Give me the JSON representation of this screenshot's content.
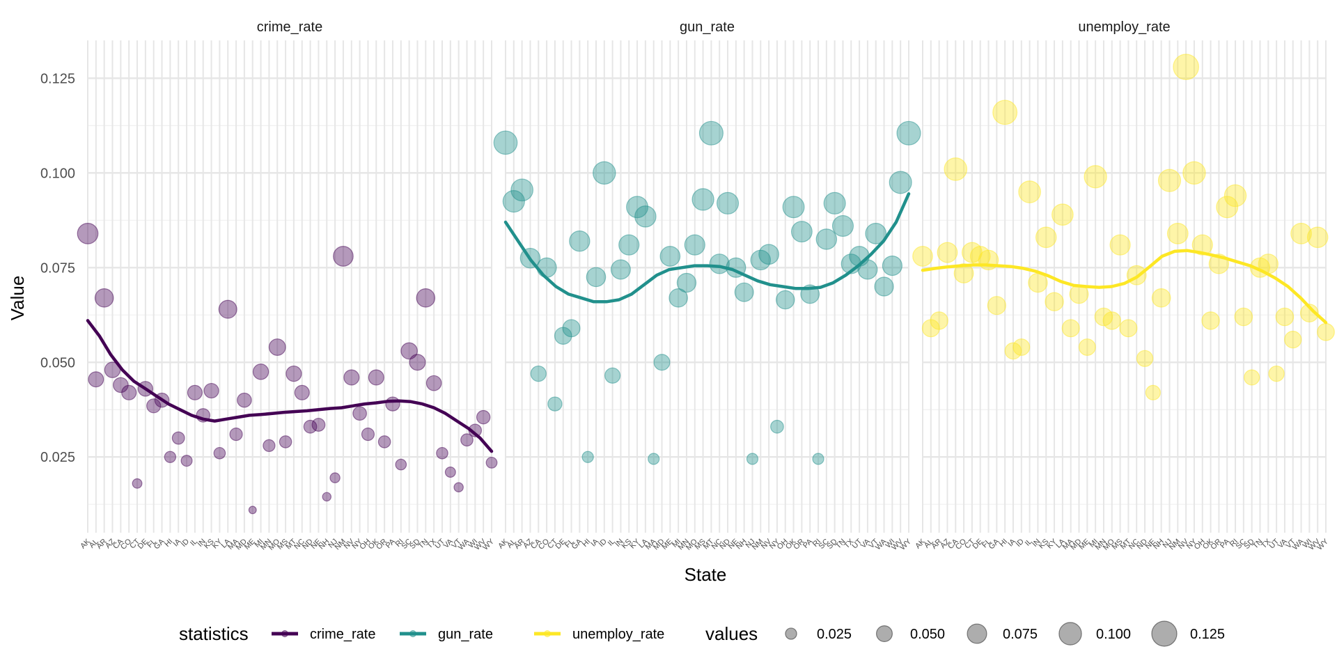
{
  "chart_data": {
    "type": "scatter",
    "facets": [
      "crime_rate",
      "gun_rate",
      "unemploy_rate"
    ],
    "xlabel": "State",
    "ylabel": "Value",
    "ylim": [
      0.005,
      0.135
    ],
    "y_ticks": [
      "0.025",
      "0.050",
      "0.075",
      "0.100",
      "0.125"
    ],
    "grid": true,
    "legend_position": "bottom",
    "states": [
      "AK",
      "AL",
      "AR",
      "AZ",
      "CA",
      "CO",
      "CT",
      "DE",
      "FL",
      "GA",
      "HI",
      "IA",
      "ID",
      "IL",
      "IN",
      "KS",
      "KY",
      "LA",
      "MA",
      "MD",
      "ME",
      "MI",
      "MN",
      "MO",
      "MS",
      "MT",
      "NC",
      "ND",
      "NE",
      "NH",
      "NJ",
      "NM",
      "NV",
      "NY",
      "OH",
      "OK",
      "OR",
      "PA",
      "RI",
      "SC",
      "SD",
      "TN",
      "TX",
      "UT",
      "VA",
      "VT",
      "WA",
      "WI",
      "WV",
      "WY"
    ],
    "series": [
      {
        "name": "crime_rate",
        "color": "#440154",
        "values": [
          0.084,
          0.0455,
          0.067,
          0.048,
          0.044,
          0.042,
          0.018,
          0.043,
          0.0385,
          0.04,
          0.025,
          0.03,
          0.024,
          0.042,
          0.036,
          0.0425,
          0.026,
          0.064,
          0.031,
          0.04,
          0.011,
          0.0475,
          0.028,
          0.054,
          0.029,
          0.047,
          0.042,
          0.033,
          0.0335,
          0.0145,
          0.0195,
          0.078,
          0.046,
          0.0365,
          0.031,
          0.046,
          0.029,
          0.039,
          0.023,
          0.053,
          0.05,
          0.067,
          0.0445,
          0.026,
          0.021,
          0.017,
          0.0295,
          0.032,
          0.0355,
          0.0235
        ],
        "trend": [
          0.061,
          0.057,
          0.052,
          0.048,
          0.045,
          0.043,
          0.041,
          0.039,
          0.0375,
          0.036,
          0.035,
          0.0345,
          0.035,
          0.0355,
          0.036,
          0.0362,
          0.0365,
          0.0368,
          0.037,
          0.0372,
          0.0375,
          0.0378,
          0.038,
          0.0385,
          0.039,
          0.0393,
          0.0397,
          0.0398,
          0.0396,
          0.039,
          0.038,
          0.0365,
          0.0345,
          0.0325,
          0.03,
          0.0265
        ]
      },
      {
        "name": "gun_rate",
        "color": "#21908c",
        "values": [
          0.108,
          0.0925,
          0.0955,
          0.0775,
          0.047,
          0.075,
          0.039,
          0.057,
          0.059,
          0.082,
          0.025,
          0.0725,
          0.1,
          0.0465,
          0.0745,
          0.081,
          0.091,
          0.0885,
          0.0245,
          0.05,
          0.078,
          0.067,
          0.071,
          0.081,
          0.093,
          0.1105,
          0.076,
          0.092,
          0.075,
          0.0685,
          0.0245,
          0.077,
          0.0785,
          0.033,
          0.0665,
          0.091,
          0.0845,
          0.068,
          0.0245,
          0.0825,
          0.092,
          0.086,
          0.076,
          0.078,
          0.0745,
          0.084,
          0.07,
          0.0755,
          0.0975,
          0.1105
        ],
        "trend": [
          0.087,
          0.082,
          0.077,
          0.073,
          0.07,
          0.068,
          0.067,
          0.066,
          0.066,
          0.0665,
          0.068,
          0.0705,
          0.073,
          0.0745,
          0.075,
          0.0755,
          0.0755,
          0.0753,
          0.0745,
          0.073,
          0.0715,
          0.0705,
          0.07,
          0.0695,
          0.0695,
          0.0698,
          0.071,
          0.073,
          0.0755,
          0.0785,
          0.082,
          0.087,
          0.0945
        ]
      },
      {
        "name": "unemploy_rate",
        "color": "#fde725",
        "values": [
          0.078,
          0.059,
          0.061,
          0.079,
          0.101,
          0.0735,
          0.079,
          0.078,
          0.077,
          0.065,
          0.116,
          0.053,
          0.054,
          0.095,
          0.071,
          0.083,
          0.066,
          0.089,
          0.059,
          0.068,
          0.054,
          0.099,
          0.062,
          0.061,
          0.081,
          0.059,
          0.073,
          0.051,
          0.042,
          0.067,
          0.098,
          0.084,
          0.128,
          0.1,
          0.081,
          0.061,
          0.076,
          0.091,
          0.094,
          0.062,
          0.046,
          0.075,
          0.076,
          0.047,
          0.062,
          0.056,
          0.084,
          0.063,
          0.083,
          0.058
        ],
        "trend": [
          0.0743,
          0.0748,
          0.0752,
          0.0755,
          0.0757,
          0.0757,
          0.0755,
          0.0753,
          0.0748,
          0.074,
          0.0728,
          0.0713,
          0.0703,
          0.07,
          0.0698,
          0.07,
          0.0708,
          0.0725,
          0.0752,
          0.078,
          0.0793,
          0.0795,
          0.079,
          0.0783,
          0.0775,
          0.0765,
          0.0755,
          0.074,
          0.0722,
          0.07,
          0.067,
          0.0635,
          0.0605
        ]
      }
    ],
    "size_legend": {
      "title": "values",
      "breaks": [
        0.025,
        0.05,
        0.075,
        0.1,
        0.125
      ],
      "labels": [
        "0.025",
        "0.050",
        "0.075",
        "0.100",
        "0.125"
      ]
    },
    "color_legend": {
      "title": "statistics",
      "entries": [
        "crime_rate",
        "gun_rate",
        "unemploy_rate"
      ]
    }
  }
}
